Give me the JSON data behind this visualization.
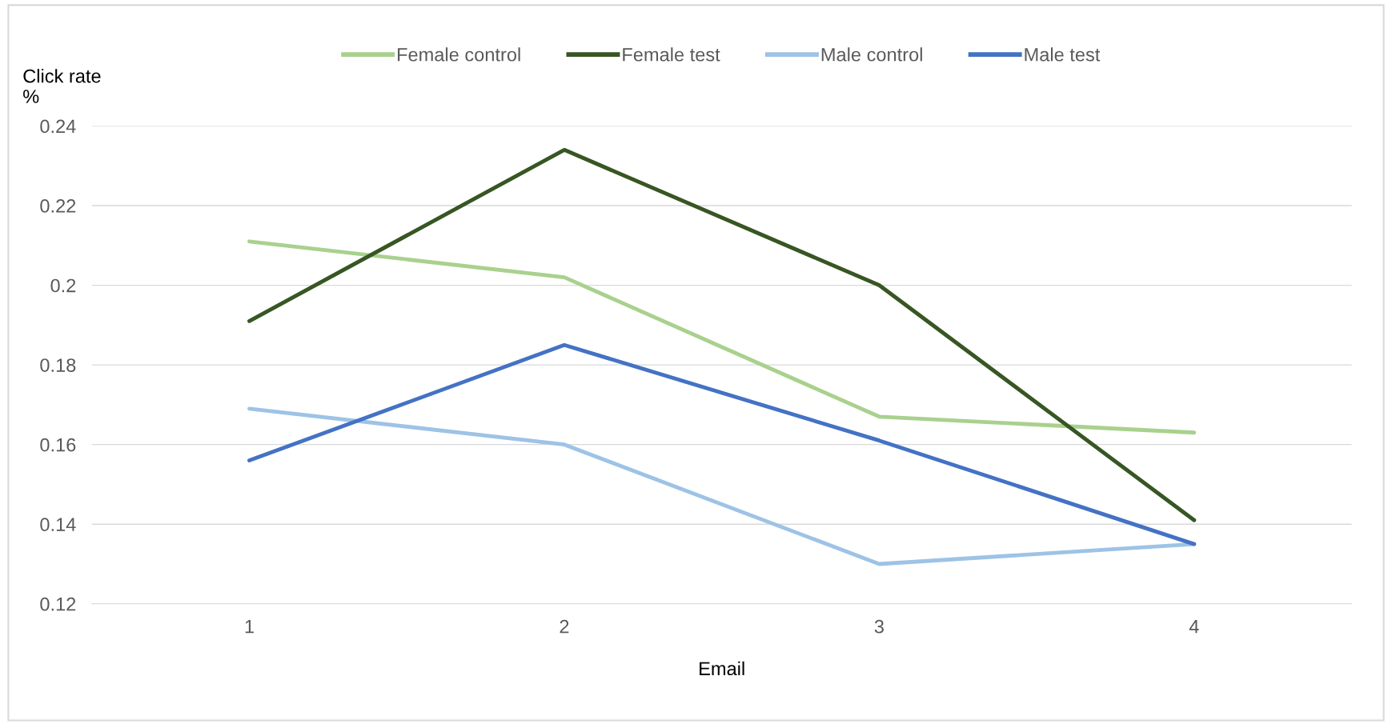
{
  "chart_data": {
    "type": "line",
    "xlabel": "Email",
    "ylabel": "Click rate\n%",
    "categories": [
      "1",
      "2",
      "3",
      "4"
    ],
    "series": [
      {
        "name": "Female control",
        "color": "#a9d18e",
        "values": [
          0.211,
          0.202,
          0.167,
          0.163
        ]
      },
      {
        "name": "Female test",
        "color": "#375623",
        "values": [
          0.191,
          0.234,
          0.2,
          0.141
        ]
      },
      {
        "name": "Male control",
        "color": "#9dc3e6",
        "values": [
          0.169,
          0.16,
          0.13,
          0.135
        ]
      },
      {
        "name": "Male test",
        "color": "#4472c4",
        "values": [
          0.156,
          0.185,
          0.161,
          0.135
        ]
      }
    ],
    "ylim": [
      0.12,
      0.24
    ],
    "yticks": [
      0.12,
      0.14,
      0.16,
      0.18,
      0.2,
      0.22,
      0.24
    ],
    "grid": "y",
    "legend": "top",
    "marker": "none",
    "line_style": "solid"
  }
}
